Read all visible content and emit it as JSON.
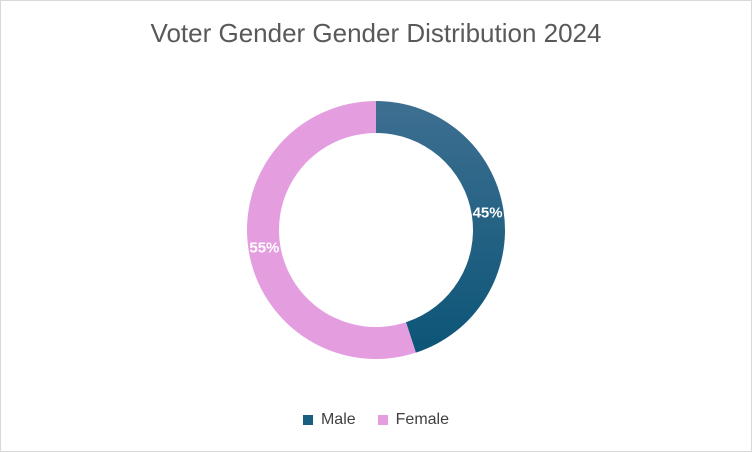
{
  "chart_data": {
    "type": "pie",
    "variant": "doughnut",
    "title": "Voter Gender Gender Distribution 2024",
    "categories": [
      "Male",
      "Female"
    ],
    "values": [
      45,
      55
    ],
    "labels": [
      "45%",
      "55%"
    ],
    "colors": [
      "#1a5e82",
      "#e49ee0"
    ],
    "gradient_start": "#3e6f91",
    "gradient_end": "#0c5577",
    "legend_position": "bottom"
  }
}
